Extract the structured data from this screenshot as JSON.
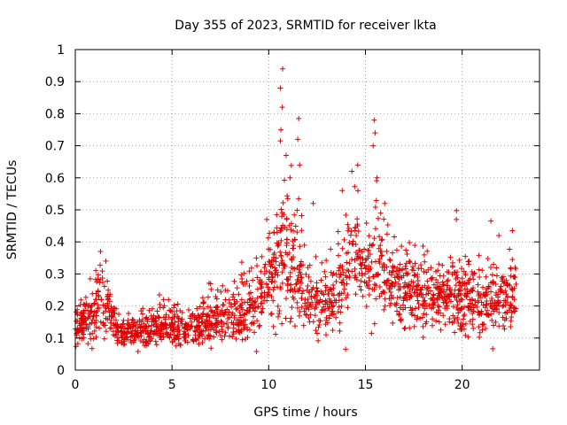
{
  "chart_data": {
    "type": "scatter",
    "title": "Day 355 of 2023, SRMTID for receiver lkta",
    "xlabel": "GPS time / hours",
    "ylabel": "SRMTID / TECUs",
    "xlim": [
      0,
      24
    ],
    "ylim": [
      0,
      1
    ],
    "xticks": [
      0,
      5,
      10,
      15,
      20
    ],
    "yticks": [
      0,
      0.1,
      0.2,
      0.3,
      0.4,
      0.5,
      0.6,
      0.7,
      0.8,
      0.9,
      1
    ],
    "grid": true,
    "marker": "+",
    "color": "#e00000",
    "series": [
      {
        "name": "SRMTID",
        "profile": {
          "hours": [
            0,
            1,
            1.3,
            2,
            2.5,
            3,
            4,
            5,
            6,
            7,
            8,
            9,
            9.7,
            10.3,
            10.6,
            11,
            11.5,
            12,
            13,
            13.5,
            14,
            14.5,
            15,
            15.5,
            16,
            17,
            18,
            19,
            20,
            21,
            22,
            22.8
          ],
          "mean": [
            0.13,
            0.17,
            0.24,
            0.15,
            0.11,
            0.12,
            0.13,
            0.13,
            0.14,
            0.15,
            0.17,
            0.19,
            0.24,
            0.3,
            0.36,
            0.34,
            0.3,
            0.22,
            0.2,
            0.25,
            0.3,
            0.35,
            0.32,
            0.38,
            0.3,
            0.25,
            0.23,
            0.22,
            0.23,
            0.2,
            0.22,
            0.24
          ],
          "spread": [
            0.05,
            0.07,
            0.1,
            0.05,
            0.04,
            0.04,
            0.05,
            0.05,
            0.05,
            0.06,
            0.07,
            0.08,
            0.1,
            0.13,
            0.2,
            0.15,
            0.13,
            0.09,
            0.08,
            0.11,
            0.14,
            0.15,
            0.12,
            0.18,
            0.12,
            0.1,
            0.09,
            0.09,
            0.1,
            0.09,
            0.1,
            0.1
          ]
        },
        "peaks": [
          {
            "x": 10.72,
            "y": 0.94
          },
          {
            "x": 10.6,
            "y": 0.88
          },
          {
            "x": 10.7,
            "y": 0.82
          },
          {
            "x": 10.6,
            "y": 0.715
          },
          {
            "x": 11.55,
            "y": 0.785
          },
          {
            "x": 11.5,
            "y": 0.72
          },
          {
            "x": 10.9,
            "y": 0.67
          },
          {
            "x": 11.1,
            "y": 0.6
          },
          {
            "x": 11.6,
            "y": 0.64
          },
          {
            "x": 15.45,
            "y": 0.78
          },
          {
            "x": 15.5,
            "y": 0.74
          },
          {
            "x": 15.4,
            "y": 0.7
          },
          {
            "x": 15.6,
            "y": 0.6
          },
          {
            "x": 14.3,
            "y": 0.62
          },
          {
            "x": 14.6,
            "y": 0.64
          },
          {
            "x": 13.8,
            "y": 0.56
          },
          {
            "x": 16.0,
            "y": 0.52
          },
          {
            "x": 12.3,
            "y": 0.52
          },
          {
            "x": 11.55,
            "y": 0.535
          },
          {
            "x": 19.7,
            "y": 0.47
          },
          {
            "x": 22.6,
            "y": 0.435
          },
          {
            "x": 9.9,
            "y": 0.47
          },
          {
            "x": 1.3,
            "y": 0.37
          },
          {
            "x": 21.9,
            "y": 0.42
          }
        ]
      }
    ]
  }
}
